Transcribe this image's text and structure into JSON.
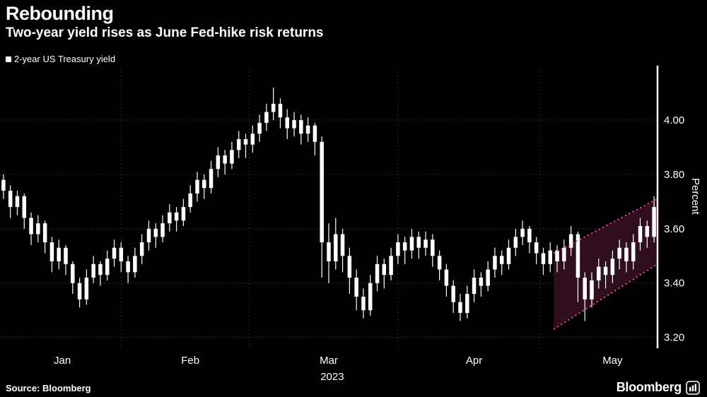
{
  "header": {
    "title": "Rebounding",
    "subtitle": "Two-year yield rises as June Fed-hike risk returns"
  },
  "legend": {
    "label": "2-year US Treasury yield",
    "marker_color": "#ffffff"
  },
  "footer": {
    "source": "Source: Bloomberg",
    "brand": "Bloomberg"
  },
  "chart_data": {
    "type": "candlestick",
    "title": "Rebounding",
    "subtitle": "Two-year yield rises as June Fed-hike risk returns",
    "series_name": "2-year US Treasury yield",
    "ylabel": "Percent",
    "yticks": [
      3.2,
      3.4,
      3.6,
      3.8,
      4.0
    ],
    "ylim": [
      3.16,
      4.19
    ],
    "x_unit": "trading days, Jan 2023 - mid May 2023",
    "year_label": {
      "label": "2023",
      "t": 47.5
    },
    "month_labels": [
      {
        "label": "Jan",
        "t": 8.5
      },
      {
        "label": "Feb",
        "t": 27
      },
      {
        "label": "Mar",
        "t": 47
      },
      {
        "label": "Apr",
        "t": 68
      },
      {
        "label": "May",
        "t": 88
      }
    ],
    "month_start_lines": [
      17.5,
      36,
      57.5,
      78
    ],
    "candles_ohlc": [
      [
        3.78,
        3.8,
        3.71,
        3.74
      ],
      [
        3.74,
        3.76,
        3.64,
        3.68
      ],
      [
        3.68,
        3.74,
        3.65,
        3.72
      ],
      [
        3.72,
        3.73,
        3.6,
        3.64
      ],
      [
        3.64,
        3.66,
        3.54,
        3.58
      ],
      [
        3.58,
        3.65,
        3.55,
        3.62
      ],
      [
        3.62,
        3.63,
        3.51,
        3.55
      ],
      [
        3.55,
        3.57,
        3.44,
        3.48
      ],
      [
        3.48,
        3.56,
        3.45,
        3.53
      ],
      [
        3.53,
        3.54,
        3.43,
        3.47
      ],
      [
        3.47,
        3.48,
        3.36,
        3.4
      ],
      [
        3.4,
        3.42,
        3.31,
        3.34
      ],
      [
        3.34,
        3.45,
        3.32,
        3.42
      ],
      [
        3.42,
        3.5,
        3.4,
        3.47
      ],
      [
        3.47,
        3.48,
        3.39,
        3.43
      ],
      [
        3.43,
        3.52,
        3.41,
        3.49
      ],
      [
        3.49,
        3.56,
        3.46,
        3.53
      ],
      [
        3.53,
        3.55,
        3.44,
        3.48
      ],
      [
        3.48,
        3.5,
        3.4,
        3.44
      ],
      [
        3.44,
        3.53,
        3.42,
        3.5
      ],
      [
        3.5,
        3.58,
        3.47,
        3.55
      ],
      [
        3.55,
        3.63,
        3.52,
        3.6
      ],
      [
        3.6,
        3.62,
        3.53,
        3.57
      ],
      [
        3.57,
        3.65,
        3.55,
        3.62
      ],
      [
        3.62,
        3.69,
        3.59,
        3.66
      ],
      [
        3.66,
        3.68,
        3.59,
        3.63
      ],
      [
        3.63,
        3.71,
        3.61,
        3.68
      ],
      [
        3.68,
        3.76,
        3.66,
        3.73
      ],
      [
        3.73,
        3.81,
        3.7,
        3.78
      ],
      [
        3.78,
        3.8,
        3.71,
        3.75
      ],
      [
        3.75,
        3.85,
        3.73,
        3.82
      ],
      [
        3.82,
        3.9,
        3.79,
        3.87
      ],
      [
        3.87,
        3.89,
        3.8,
        3.84
      ],
      [
        3.84,
        3.92,
        3.82,
        3.89
      ],
      [
        3.89,
        3.96,
        3.86,
        3.93
      ],
      [
        3.93,
        3.95,
        3.86,
        3.91
      ],
      [
        3.91,
        3.98,
        3.88,
        3.95
      ],
      [
        3.95,
        4.02,
        3.92,
        3.99
      ],
      [
        3.99,
        4.06,
        3.96,
        4.03
      ],
      [
        4.03,
        4.12,
        4.0,
        4.06
      ],
      [
        4.06,
        4.08,
        3.97,
        4.01
      ],
      [
        4.01,
        4.04,
        3.93,
        3.97
      ],
      [
        3.97,
        4.03,
        3.94,
        4.0
      ],
      [
        4.0,
        4.02,
        3.91,
        3.95
      ],
      [
        3.95,
        4.01,
        3.92,
        3.98
      ],
      [
        3.98,
        3.99,
        3.87,
        3.92
      ],
      [
        3.92,
        3.94,
        3.42,
        3.55
      ],
      [
        3.55,
        3.62,
        3.4,
        3.48
      ],
      [
        3.48,
        3.64,
        3.45,
        3.58
      ],
      [
        3.58,
        3.6,
        3.44,
        3.5
      ],
      [
        3.5,
        3.53,
        3.36,
        3.42
      ],
      [
        3.42,
        3.45,
        3.3,
        3.35
      ],
      [
        3.35,
        3.38,
        3.27,
        3.3
      ],
      [
        3.3,
        3.43,
        3.28,
        3.4
      ],
      [
        3.4,
        3.5,
        3.37,
        3.47
      ],
      [
        3.47,
        3.49,
        3.38,
        3.43
      ],
      [
        3.43,
        3.53,
        3.41,
        3.5
      ],
      [
        3.5,
        3.58,
        3.47,
        3.55
      ],
      [
        3.55,
        3.57,
        3.47,
        3.52
      ],
      [
        3.52,
        3.6,
        3.49,
        3.57
      ],
      [
        3.57,
        3.59,
        3.49,
        3.53
      ],
      [
        3.53,
        3.59,
        3.5,
        3.56
      ],
      [
        3.56,
        3.58,
        3.46,
        3.5
      ],
      [
        3.5,
        3.52,
        3.41,
        3.45
      ],
      [
        3.45,
        3.47,
        3.35,
        3.39
      ],
      [
        3.39,
        3.41,
        3.29,
        3.33
      ],
      [
        3.33,
        3.36,
        3.26,
        3.29
      ],
      [
        3.29,
        3.39,
        3.27,
        3.36
      ],
      [
        3.36,
        3.45,
        3.33,
        3.42
      ],
      [
        3.42,
        3.44,
        3.35,
        3.39
      ],
      [
        3.39,
        3.48,
        3.37,
        3.45
      ],
      [
        3.45,
        3.53,
        3.42,
        3.5
      ],
      [
        3.5,
        3.52,
        3.43,
        3.47
      ],
      [
        3.47,
        3.56,
        3.45,
        3.53
      ],
      [
        3.53,
        3.6,
        3.5,
        3.57
      ],
      [
        3.57,
        3.63,
        3.54,
        3.6
      ],
      [
        3.6,
        3.61,
        3.51,
        3.55
      ],
      [
        3.55,
        3.57,
        3.47,
        3.51
      ],
      [
        3.51,
        3.53,
        3.43,
        3.47
      ],
      [
        3.47,
        3.55,
        3.44,
        3.52
      ],
      [
        3.52,
        3.54,
        3.44,
        3.48
      ],
      [
        3.48,
        3.56,
        3.45,
        3.53
      ],
      [
        3.53,
        3.61,
        3.5,
        3.58
      ],
      [
        3.58,
        3.59,
        3.33,
        3.42
      ],
      [
        3.42,
        3.44,
        3.26,
        3.34
      ],
      [
        3.34,
        3.44,
        3.31,
        3.41
      ],
      [
        3.41,
        3.49,
        3.38,
        3.46
      ],
      [
        3.46,
        3.48,
        3.38,
        3.43
      ],
      [
        3.43,
        3.52,
        3.4,
        3.49
      ],
      [
        3.49,
        3.56,
        3.45,
        3.53
      ],
      [
        3.53,
        3.55,
        3.44,
        3.48
      ],
      [
        3.48,
        3.58,
        3.45,
        3.55
      ],
      [
        3.55,
        3.64,
        3.52,
        3.61
      ],
      [
        3.61,
        3.63,
        3.53,
        3.57
      ],
      [
        3.57,
        3.72,
        3.55,
        3.68
      ]
    ],
    "channel": {
      "t0": 80,
      "t1": 95,
      "upper": [
        3.51,
        3.71
      ],
      "lower": [
        3.23,
        3.47
      ]
    },
    "colors": {
      "background": "#000000",
      "candle": "#ffffff",
      "grid": "#4d4d4d",
      "axis_line": "#ffffff",
      "text": "#ffffff",
      "channel_line": "#ff4d8f",
      "channel_fill": "#2e0e1f"
    }
  }
}
